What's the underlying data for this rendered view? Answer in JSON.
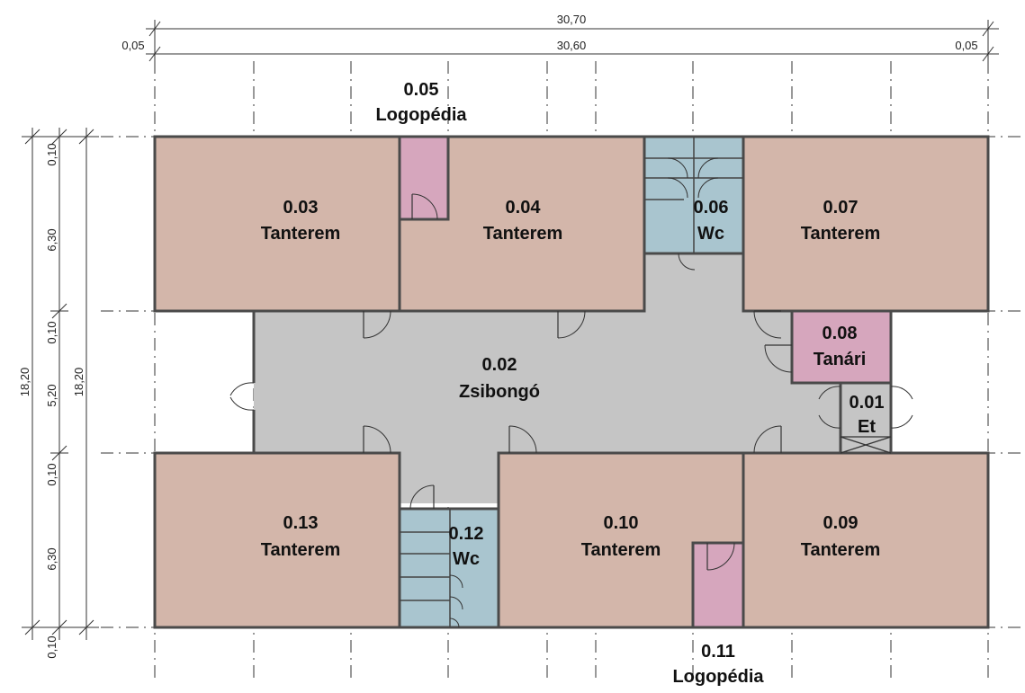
{
  "colors": {
    "classroom": "#d3b6aa",
    "corridor": "#c5c5c5",
    "wc": "#a9c5cf",
    "logopedia": "#d6a6bd",
    "staff": "#d6a6bd"
  },
  "dimensions": {
    "overall_total": "30,70",
    "overall_inner": "30,60",
    "left_offset": "0,05",
    "right_offset": "0,05",
    "vertical_total_outer": "18,20",
    "vertical_total_inner": "18,20",
    "vertical_segments": [
      "0,10",
      "6,30",
      "0,10",
      "5,20",
      "0,10",
      "6,30",
      "0,10"
    ]
  },
  "rooms": {
    "r003": {
      "number": "0.03",
      "name": "Tanterem",
      "type": "classroom"
    },
    "r004": {
      "number": "0.04",
      "name": "Tanterem",
      "type": "classroom"
    },
    "r005": {
      "number": "0.05",
      "name": "Logopédia",
      "type": "logopedia"
    },
    "r006": {
      "number": "0.06",
      "name": "Wc",
      "type": "wc"
    },
    "r007": {
      "number": "0.07",
      "name": "Tanterem",
      "type": "classroom"
    },
    "r002": {
      "number": "0.02",
      "name": "Zsibongó",
      "type": "corridor"
    },
    "r008": {
      "number": "0.08",
      "name": "Tanári",
      "type": "staff"
    },
    "r001": {
      "number": "0.01",
      "name": "Et",
      "type": "corridor"
    },
    "r013": {
      "number": "0.13",
      "name": "Tanterem",
      "type": "classroom"
    },
    "r012": {
      "number": "0.12",
      "name": "Wc",
      "type": "wc"
    },
    "r010": {
      "number": "0.10",
      "name": "Tanterem",
      "type": "classroom"
    },
    "r011": {
      "number": "0.11",
      "name": "Logopédia",
      "type": "logopedia"
    },
    "r009": {
      "number": "0.09",
      "name": "Tanterem",
      "type": "classroom"
    }
  }
}
